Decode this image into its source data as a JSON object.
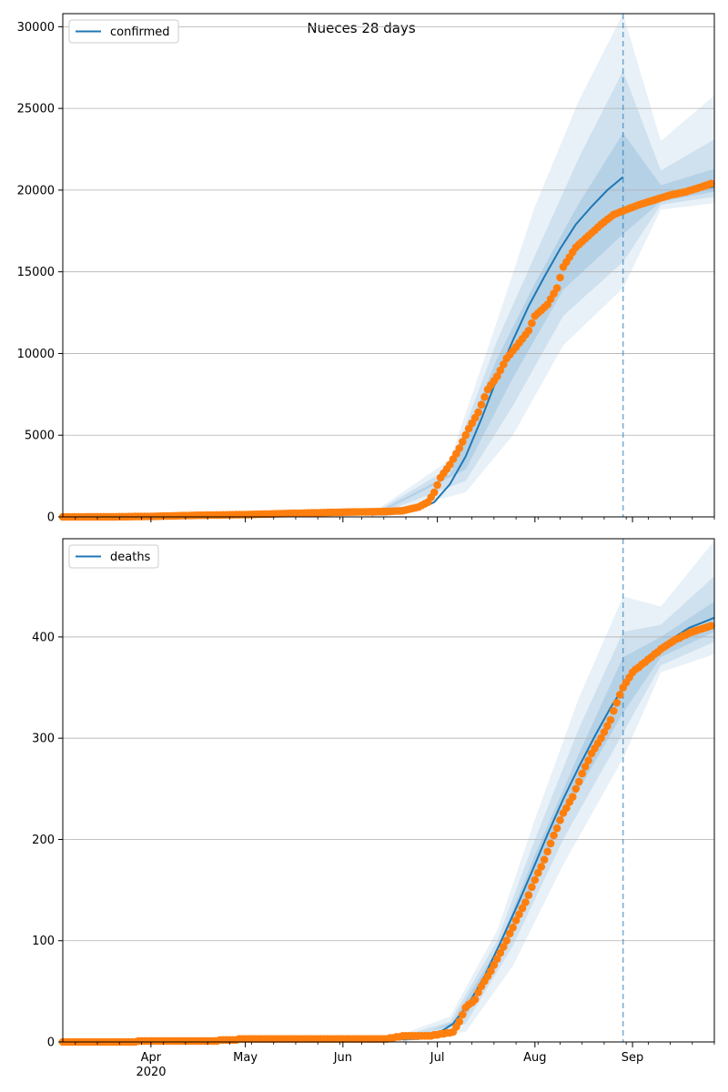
{
  "suptitle": "Nueces 28 days",
  "colors": {
    "line": "#1f77b4",
    "points": "#ff7f0e",
    "band": "#1f77b4",
    "grid": "#b0b0b0",
    "forecast_marker": "#1f77b4"
  },
  "x_axis": {
    "ticks": [
      {
        "date": "2020-04-01",
        "label": "Apr"
      },
      {
        "date": "2020-05-01",
        "label": "May"
      },
      {
        "date": "2020-06-01",
        "label": "Jun"
      },
      {
        "date": "2020-07-01",
        "label": "Jul"
      },
      {
        "date": "2020-08-01",
        "label": "Aug"
      },
      {
        "date": "2020-09-01",
        "label": "Sep"
      }
    ],
    "year_label": "2020",
    "range": [
      "2020-03-04",
      "2020-09-27"
    ]
  },
  "forecast_start": "2020-08-29",
  "chart_data": [
    {
      "type": "line",
      "legend": "confirmed",
      "legend_position": "top-left",
      "grid": "y",
      "ylim": [
        0,
        30800
      ],
      "yticks": [
        0,
        5000,
        10000,
        15000,
        20000,
        25000,
        30000
      ],
      "observed": [
        [
          "2020-03-04",
          0
        ],
        [
          "2020-03-20",
          5
        ],
        [
          "2020-04-01",
          30
        ],
        [
          "2020-04-15",
          95
        ],
        [
          "2020-05-01",
          140
        ],
        [
          "2020-05-15",
          210
        ],
        [
          "2020-06-01",
          290
        ],
        [
          "2020-06-15",
          330
        ],
        [
          "2020-06-20",
          380
        ],
        [
          "2020-06-25",
          600
        ],
        [
          "2020-06-28",
          900
        ],
        [
          "2020-06-30",
          1500
        ],
        [
          "2020-07-02",
          2400
        ],
        [
          "2020-07-05",
          3200
        ],
        [
          "2020-07-08",
          4200
        ],
        [
          "2020-07-11",
          5400
        ],
        [
          "2020-07-14",
          6400
        ],
        [
          "2020-07-17",
          7800
        ],
        [
          "2020-07-20",
          8600
        ],
        [
          "2020-07-23",
          9700
        ],
        [
          "2020-07-26",
          10400
        ],
        [
          "2020-07-30",
          11400
        ],
        [
          "2020-08-01",
          12300
        ],
        [
          "2020-08-05",
          13000
        ],
        [
          "2020-08-08",
          14000
        ],
        [
          "2020-08-10",
          15300
        ],
        [
          "2020-08-14",
          16500
        ],
        [
          "2020-08-18",
          17200
        ],
        [
          "2020-08-22",
          17900
        ],
        [
          "2020-08-26",
          18500
        ],
        [
          "2020-08-30",
          18800
        ],
        [
          "2020-09-03",
          19100
        ],
        [
          "2020-09-08",
          19400
        ],
        [
          "2020-09-13",
          19700
        ],
        [
          "2020-09-18",
          19900
        ],
        [
          "2020-09-23",
          20200
        ],
        [
          "2020-09-26",
          20400
        ]
      ],
      "fit_line": [
        [
          "2020-03-04",
          0
        ],
        [
          "2020-06-15",
          150
        ],
        [
          "2020-06-25",
          450
        ],
        [
          "2020-06-30",
          900
        ],
        [
          "2020-07-05",
          2000
        ],
        [
          "2020-07-10",
          3700
        ],
        [
          "2020-07-15",
          6000
        ],
        [
          "2020-07-20",
          8500
        ],
        [
          "2020-07-25",
          10800
        ],
        [
          "2020-07-30",
          12900
        ],
        [
          "2020-08-04",
          14700
        ],
        [
          "2020-08-09",
          16400
        ],
        [
          "2020-08-14",
          17900
        ],
        [
          "2020-08-19",
          19000
        ],
        [
          "2020-08-24",
          20000
        ],
        [
          "2020-08-29",
          20800
        ]
      ],
      "forecast_line": [
        [
          "2020-08-29",
          18700
        ],
        [
          "2020-09-06",
          19300
        ],
        [
          "2020-09-13",
          19700
        ],
        [
          "2020-09-20",
          20000
        ],
        [
          "2020-09-27",
          20200
        ]
      ],
      "bands": [
        {
          "level": "outer",
          "lower": [
            [
              "2020-06-10",
              0
            ],
            [
              "2020-07-10",
              1500
            ],
            [
              "2020-07-25",
              5000
            ],
            [
              "2020-08-10",
              10500
            ],
            [
              "2020-08-29",
              14000
            ],
            [
              "2020-09-10",
              18800
            ],
            [
              "2020-09-27",
              19200
            ]
          ],
          "upper": [
            [
              "2020-06-10",
              200
            ],
            [
              "2020-07-05",
              3500
            ],
            [
              "2020-07-20",
              12000
            ],
            [
              "2020-08-01",
              19000
            ],
            [
              "2020-08-15",
              25500
            ],
            [
              "2020-08-29",
              30800
            ],
            [
              "2020-09-10",
              23000
            ],
            [
              "2020-09-27",
              25800
            ]
          ]
        },
        {
          "level": "middle",
          "lower": [
            [
              "2020-06-10",
              0
            ],
            [
              "2020-07-10",
              2200
            ],
            [
              "2020-07-25",
              6800
            ],
            [
              "2020-08-10",
              12300
            ],
            [
              "2020-08-29",
              15600
            ],
            [
              "2020-09-10",
              19100
            ],
            [
              "2020-09-27",
              19600
            ]
          ],
          "upper": [
            [
              "2020-06-10",
              150
            ],
            [
              "2020-07-05",
              3000
            ],
            [
              "2020-07-20",
              10800
            ],
            [
              "2020-08-01",
              16000
            ],
            [
              "2020-08-15",
              22000
            ],
            [
              "2020-08-29",
              27300
            ],
            [
              "2020-09-10",
              21200
            ],
            [
              "2020-09-27",
              23100
            ]
          ]
        },
        {
          "level": "inner",
          "lower": [
            [
              "2020-06-10",
              0
            ],
            [
              "2020-07-10",
              2900
            ],
            [
              "2020-07-25",
              8500
            ],
            [
              "2020-08-10",
              13900
            ],
            [
              "2020-08-29",
              17300
            ],
            [
              "2020-09-10",
              19300
            ],
            [
              "2020-09-27",
              19900
            ]
          ],
          "upper": [
            [
              "2020-06-10",
              100
            ],
            [
              "2020-07-05",
              2600
            ],
            [
              "2020-07-20",
              9700
            ],
            [
              "2020-08-01",
              14300
            ],
            [
              "2020-08-15",
              19200
            ],
            [
              "2020-08-29",
              23500
            ],
            [
              "2020-09-10",
              20300
            ],
            [
              "2020-09-27",
              21300
            ]
          ]
        }
      ]
    },
    {
      "type": "line",
      "legend": "deaths",
      "legend_position": "top-left",
      "grid": "y",
      "ylim": [
        0,
        497
      ],
      "yticks": [
        0,
        100,
        200,
        300,
        400
      ],
      "observed": [
        [
          "2020-03-04",
          0
        ],
        [
          "2020-04-20",
          1
        ],
        [
          "2020-05-01",
          3
        ],
        [
          "2020-06-15",
          3
        ],
        [
          "2020-06-20",
          6
        ],
        [
          "2020-06-28",
          6
        ],
        [
          "2020-07-03",
          8
        ],
        [
          "2020-07-06",
          10
        ],
        [
          "2020-07-08",
          20
        ],
        [
          "2020-07-10",
          34
        ],
        [
          "2020-07-13",
          42
        ],
        [
          "2020-07-15",
          55
        ],
        [
          "2020-07-18",
          70
        ],
        [
          "2020-07-20",
          82
        ],
        [
          "2020-07-23",
          100
        ],
        [
          "2020-07-26",
          120
        ],
        [
          "2020-07-29",
          138
        ],
        [
          "2020-08-01",
          160
        ],
        [
          "2020-08-04",
          180
        ],
        [
          "2020-08-07",
          204
        ],
        [
          "2020-08-10",
          226
        ],
        [
          "2020-08-13",
          242
        ],
        [
          "2020-08-16",
          265
        ],
        [
          "2020-08-19",
          285
        ],
        [
          "2020-08-22",
          300
        ],
        [
          "2020-08-25",
          318
        ],
        [
          "2020-08-27",
          335
        ],
        [
          "2020-08-29",
          350
        ],
        [
          "2020-09-01",
          365
        ],
        [
          "2020-09-05",
          375
        ],
        [
          "2020-09-10",
          388
        ],
        [
          "2020-09-15",
          398
        ],
        [
          "2020-09-20",
          405
        ],
        [
          "2020-09-26",
          411
        ]
      ],
      "fit_line": [
        [
          "2020-03-04",
          0
        ],
        [
          "2020-06-25",
          3
        ],
        [
          "2020-07-01",
          8
        ],
        [
          "2020-07-06",
          18
        ],
        [
          "2020-07-11",
          38
        ],
        [
          "2020-07-16",
          65
        ],
        [
          "2020-07-21",
          98
        ],
        [
          "2020-07-26",
          132
        ],
        [
          "2020-07-31",
          168
        ],
        [
          "2020-08-05",
          205
        ],
        [
          "2020-08-10",
          240
        ],
        [
          "2020-08-15",
          272
        ],
        [
          "2020-08-20",
          302
        ],
        [
          "2020-08-25",
          330
        ],
        [
          "2020-08-29",
          350
        ]
      ],
      "forecast_line": [
        [
          "2020-08-29",
          352
        ],
        [
          "2020-09-05",
          378
        ],
        [
          "2020-09-12",
          395
        ],
        [
          "2020-09-19",
          409
        ],
        [
          "2020-09-27",
          419
        ]
      ],
      "bands": [
        {
          "level": "outer",
          "lower": [
            [
              "2020-06-20",
              0
            ],
            [
              "2020-07-10",
              10
            ],
            [
              "2020-07-25",
              75
            ],
            [
              "2020-08-10",
              175
            ],
            [
              "2020-08-29",
              280
            ],
            [
              "2020-09-10",
              365
            ],
            [
              "2020-09-27",
              383
            ]
          ],
          "upper": [
            [
              "2020-06-20",
              8
            ],
            [
              "2020-07-05",
              25
            ],
            [
              "2020-07-20",
              110
            ],
            [
              "2020-08-01",
              220
            ],
            [
              "2020-08-15",
              340
            ],
            [
              "2020-08-29",
              440
            ],
            [
              "2020-09-10",
              430
            ],
            [
              "2020-09-27",
              495
            ]
          ]
        },
        {
          "level": "middle",
          "lower": [
            [
              "2020-06-20",
              0
            ],
            [
              "2020-07-10",
              18
            ],
            [
              "2020-07-25",
              95
            ],
            [
              "2020-08-10",
              200
            ],
            [
              "2020-08-29",
              305
            ],
            [
              "2020-09-10",
              372
            ],
            [
              "2020-09-27",
              395
            ]
          ],
          "upper": [
            [
              "2020-06-20",
              6
            ],
            [
              "2020-07-05",
              20
            ],
            [
              "2020-07-20",
              100
            ],
            [
              "2020-08-01",
              200
            ],
            [
              "2020-08-15",
              310
            ],
            [
              "2020-08-29",
              405
            ],
            [
              "2020-09-10",
              412
            ],
            [
              "2020-09-27",
              460
            ]
          ]
        },
        {
          "level": "inner",
          "lower": [
            [
              "2020-06-20",
              0
            ],
            [
              "2020-07-10",
              25
            ],
            [
              "2020-07-25",
              110
            ],
            [
              "2020-08-10",
              222
            ],
            [
              "2020-08-29",
              325
            ],
            [
              "2020-09-10",
              380
            ],
            [
              "2020-09-27",
              405
            ]
          ],
          "upper": [
            [
              "2020-06-20",
              4
            ],
            [
              "2020-07-05",
              16
            ],
            [
              "2020-07-20",
              92
            ],
            [
              "2020-08-01",
              185
            ],
            [
              "2020-08-15",
              285
            ],
            [
              "2020-08-29",
              380
            ],
            [
              "2020-09-10",
              400
            ],
            [
              "2020-09-27",
              435
            ]
          ]
        }
      ]
    }
  ]
}
